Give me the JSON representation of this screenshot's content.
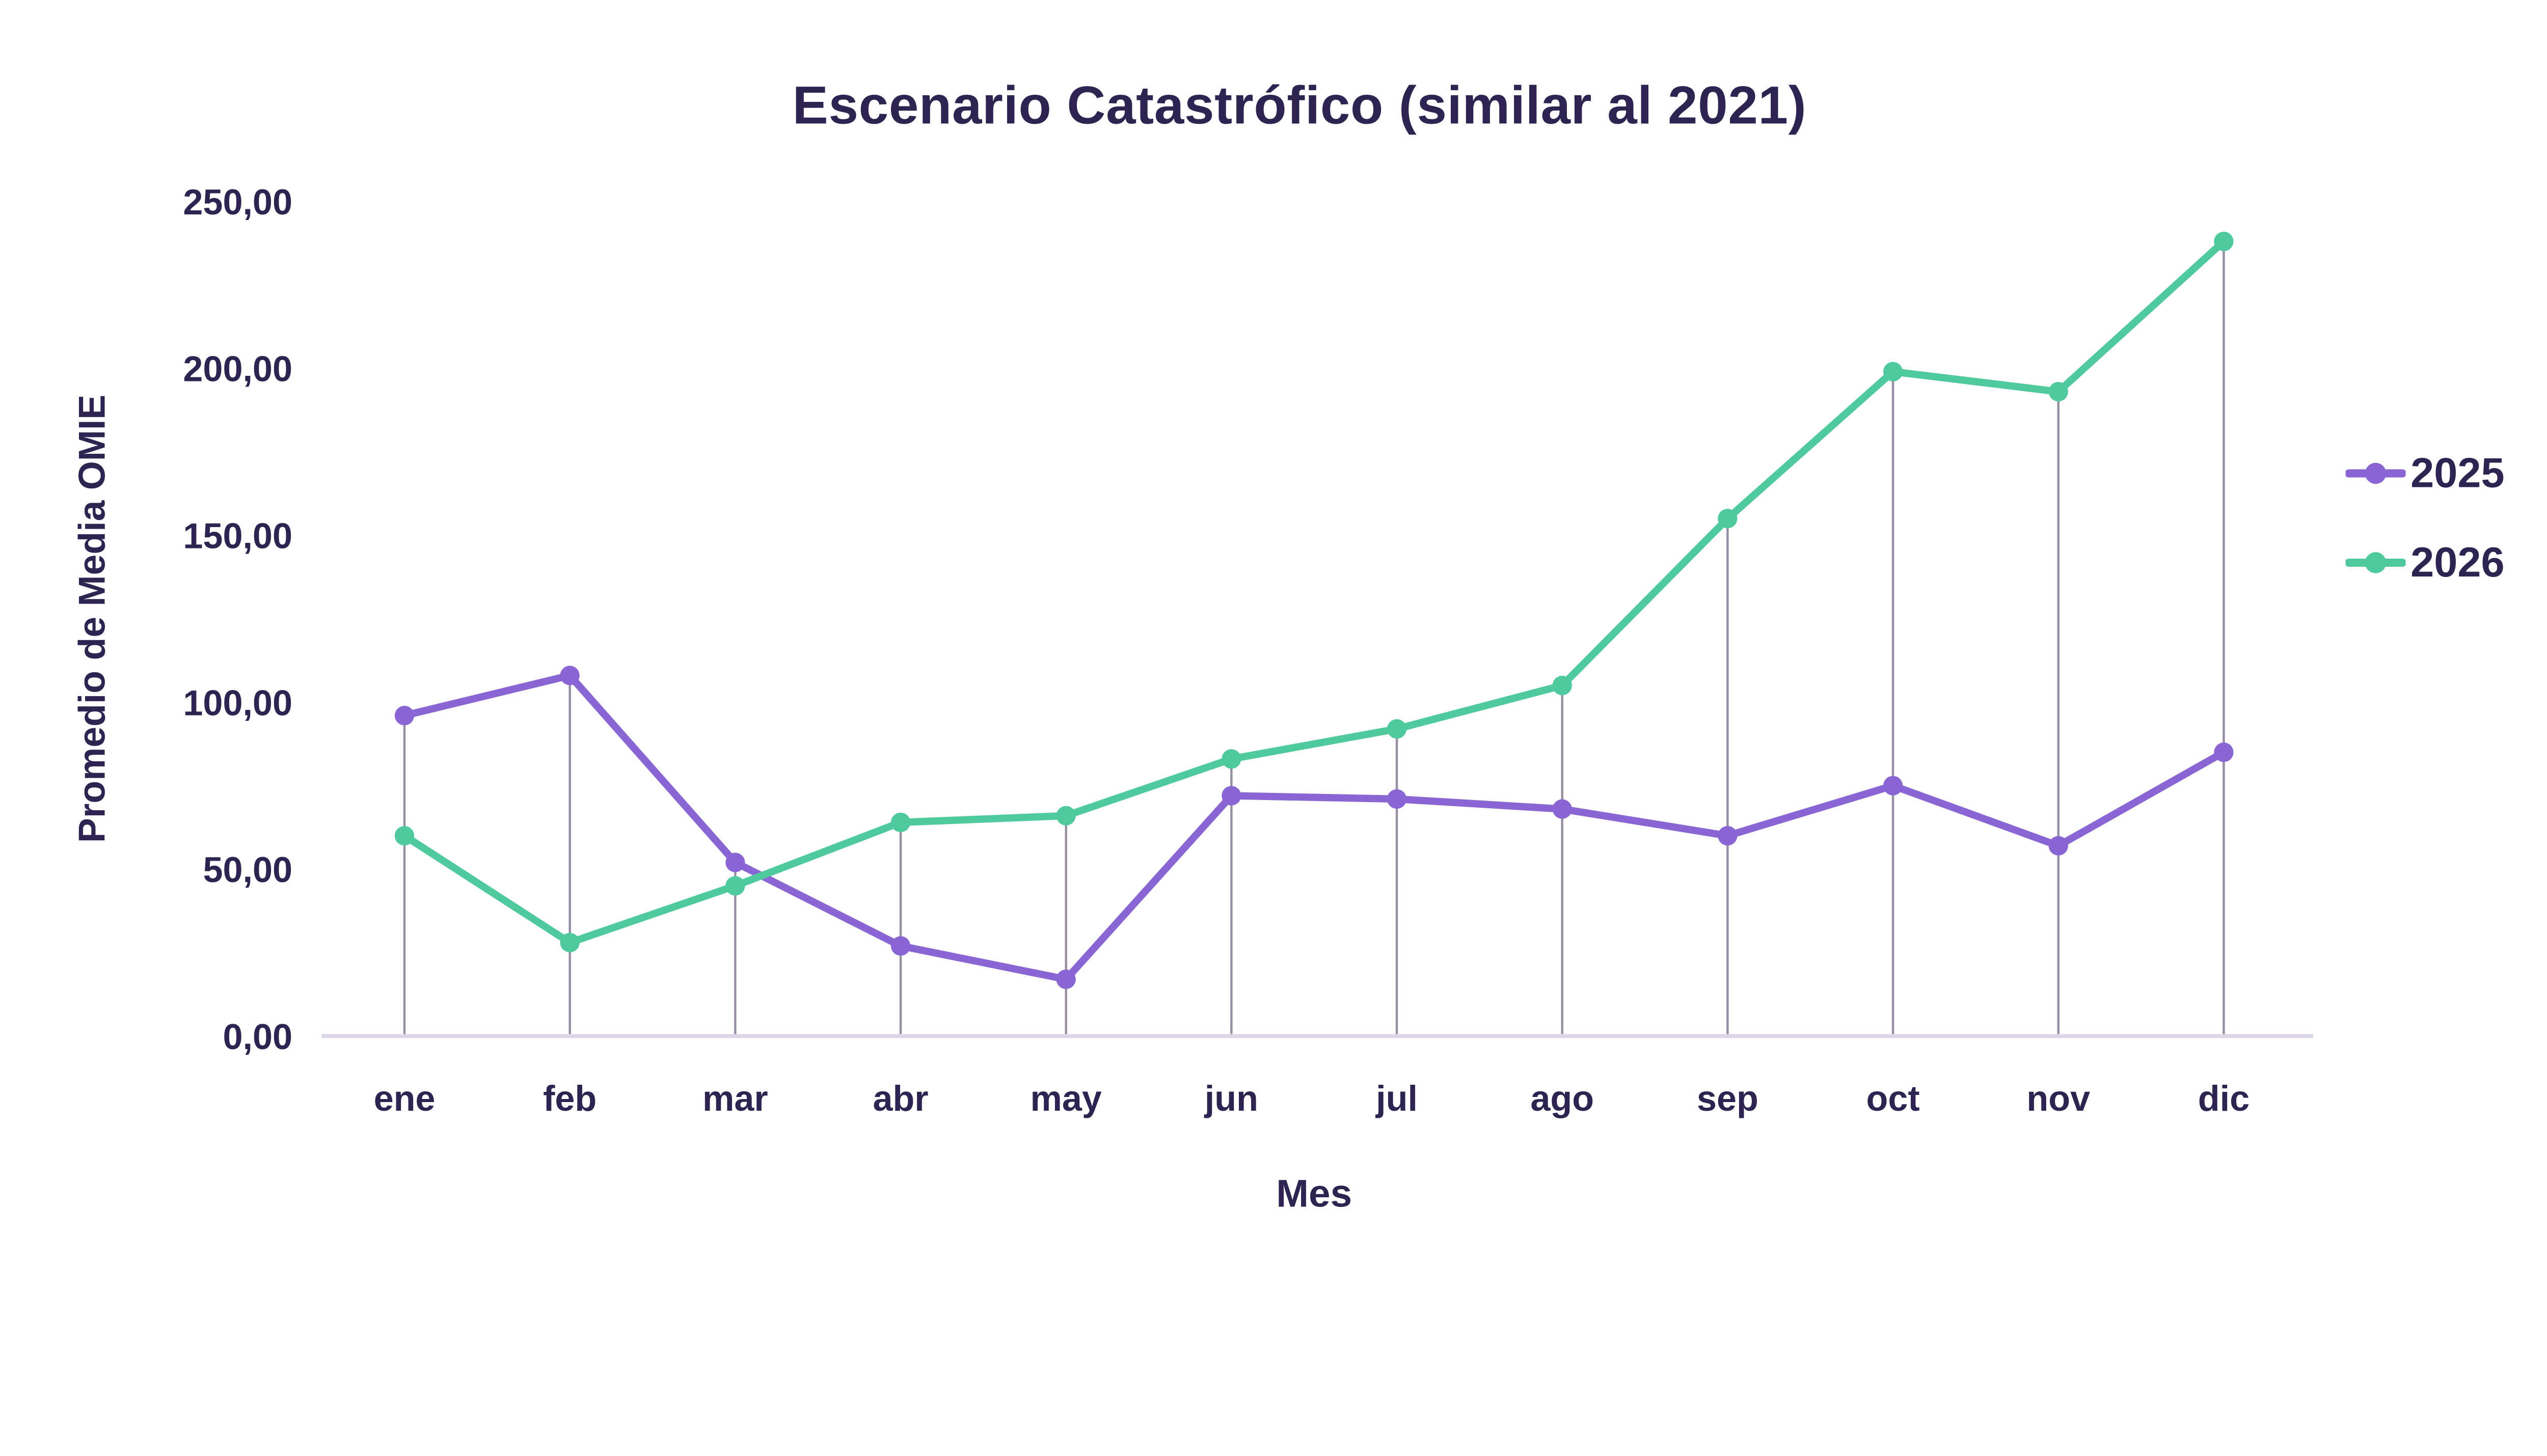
{
  "chart_data": {
    "type": "line",
    "title": "Escenario Catastrófico (similar al 2021)",
    "xlabel": "Mes",
    "ylabel": "Promedio de Media OMIE",
    "categories": [
      "ene",
      "feb",
      "mar",
      "abr",
      "may",
      "jun",
      "jul",
      "ago",
      "sep",
      "oct",
      "nov",
      "dic"
    ],
    "series": [
      {
        "name": "2025",
        "color": "#8a66d4",
        "values": [
          96,
          108,
          52,
          27,
          17,
          72,
          71,
          68,
          60,
          75,
          57,
          85
        ]
      },
      {
        "name": "2026",
        "color": "#4fc99e",
        "values": [
          60,
          28,
          45,
          64,
          66,
          83,
          92,
          105,
          155,
          199,
          193,
          238
        ]
      }
    ],
    "ylim": [
      0,
      250
    ],
    "yticks": [
      0,
      50,
      100,
      150,
      200,
      250
    ],
    "ytick_labels": [
      "0,00",
      "50,00",
      "100,00",
      "150,00",
      "200,00",
      "250,00"
    ],
    "grid": "vertical droplines from x-axis to highest point per month",
    "legend_position": "right"
  },
  "colors": {
    "text": "#2e2451",
    "axis_line": "#dcd6e8",
    "dropline": "#8b8299",
    "background": "#ffffff",
    "series_2025": "#8a66d4",
    "series_2026": "#4fc99e"
  }
}
